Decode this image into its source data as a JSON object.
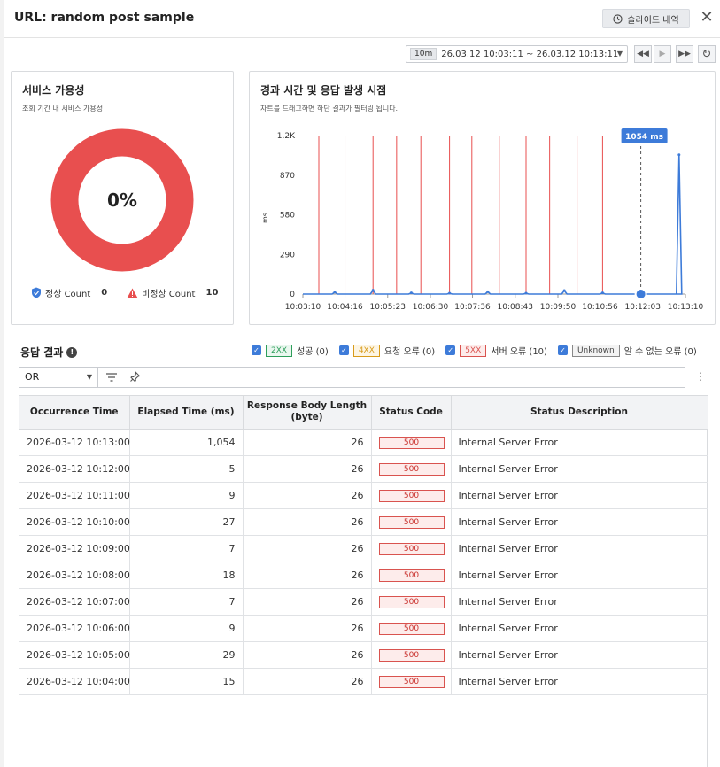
{
  "header": {
    "title": "URL: random post sample",
    "slide_button": "슬라이드 내역",
    "close": "✕"
  },
  "timebar": {
    "range_chip": "10m",
    "range_text": "26.03.12 10:03:11 ~ 26.03.12 10:13:11"
  },
  "controls": {
    "rewind": "◀◀",
    "play": "▶",
    "forward": "▶▶",
    "refresh": "↻"
  },
  "availability": {
    "title": "서비스 가용성",
    "subtitle": "조회 기간 내 서비스 가용성",
    "percent_label": "0%",
    "availability_fraction": 0,
    "normal_label": "정상 Count",
    "normal_count": "0",
    "abnormal_label": "비정상 Count",
    "abnormal_count": "10",
    "colors": {
      "normal": "#3d7bd9",
      "abnormal": "#e84f4f"
    }
  },
  "response_chart": {
    "title": "경과 시간 및 응답 발생 시점",
    "subtitle": "차트를 드래그하면 하단 결과가 필터링 됩니다.",
    "tooltip": "1054 ms"
  },
  "chart_data": {
    "type": "line",
    "ylabel": "ms",
    "ylim": [
      0,
      1200
    ],
    "y_ticks": [
      "1.2K",
      "870",
      "580",
      "290",
      "0"
    ],
    "x_ticks": [
      "10:03:10",
      "10:04:16",
      "10:05:23",
      "10:06:30",
      "10:07:36",
      "10:08:43",
      "10:09:50",
      "10:10:56",
      "10:12:03",
      "10:13:10"
    ],
    "xlim": [
      "10:03:10",
      "10:13:10"
    ],
    "series": [
      {
        "values": [
          {
            "x": "10:04:00",
            "y": 15
          },
          {
            "x": "10:05:00",
            "y": 29
          },
          {
            "x": "10:06:00",
            "y": 9
          },
          {
            "x": "10:07:00",
            "y": 7
          },
          {
            "x": "10:08:00",
            "y": 18
          },
          {
            "x": "10:09:00",
            "y": 7
          },
          {
            "x": "10:10:00",
            "y": 27
          },
          {
            "x": "10:11:00",
            "y": 9
          },
          {
            "x": "10:12:00",
            "y": 5
          },
          {
            "x": "10:13:00",
            "y": 1054
          }
        ]
      }
    ],
    "error_markers": [
      "10:03:35",
      "10:04:16",
      "10:05:00",
      "10:05:37",
      "10:06:15",
      "10:07:00",
      "10:07:35",
      "10:08:18",
      "10:09:00",
      "10:09:37",
      "10:10:20",
      "10:11:00"
    ],
    "colors": {
      "line": "#3d7bd9",
      "error": "#e84f4f"
    }
  },
  "results": {
    "title": "응답 결과",
    "filters": [
      {
        "tag": "2XX",
        "text": "성공 (0)",
        "color": "#2e9e5b",
        "bg": "#eaf7ef"
      },
      {
        "tag": "4XX",
        "text": "요청 오류 (0)",
        "color": "#d89b1a",
        "bg": "#fdf5e3"
      },
      {
        "tag": "5XX",
        "text": "서버 오류 (10)",
        "color": "#d9534f",
        "bg": "#fdeceb"
      },
      {
        "tag": "Unknown",
        "text": "알 수 없는 오류 (0)",
        "color": "#666666",
        "bg": "#f3f3f3"
      }
    ],
    "query_operator": "OR",
    "columns": [
      "Occurrence Time",
      "Elapsed Time (ms)",
      "Response Body Length (byte)",
      "Status Code",
      "Status Description"
    ],
    "rows": [
      [
        "2026-03-12 10:13:00",
        "1,054",
        "26",
        "500",
        "Internal Server Error"
      ],
      [
        "2026-03-12 10:12:00",
        "5",
        "26",
        "500",
        "Internal Server Error"
      ],
      [
        "2026-03-12 10:11:00",
        "9",
        "26",
        "500",
        "Internal Server Error"
      ],
      [
        "2026-03-12 10:10:00",
        "27",
        "26",
        "500",
        "Internal Server Error"
      ],
      [
        "2026-03-12 10:09:00",
        "7",
        "26",
        "500",
        "Internal Server Error"
      ],
      [
        "2026-03-12 10:08:00",
        "18",
        "26",
        "500",
        "Internal Server Error"
      ],
      [
        "2026-03-12 10:07:00",
        "7",
        "26",
        "500",
        "Internal Server Error"
      ],
      [
        "2026-03-12 10:06:00",
        "9",
        "26",
        "500",
        "Internal Server Error"
      ],
      [
        "2026-03-12 10:05:00",
        "29",
        "26",
        "500",
        "Internal Server Error"
      ],
      [
        "2026-03-12 10:04:00",
        "15",
        "26",
        "500",
        "Internal Server Error"
      ]
    ]
  }
}
